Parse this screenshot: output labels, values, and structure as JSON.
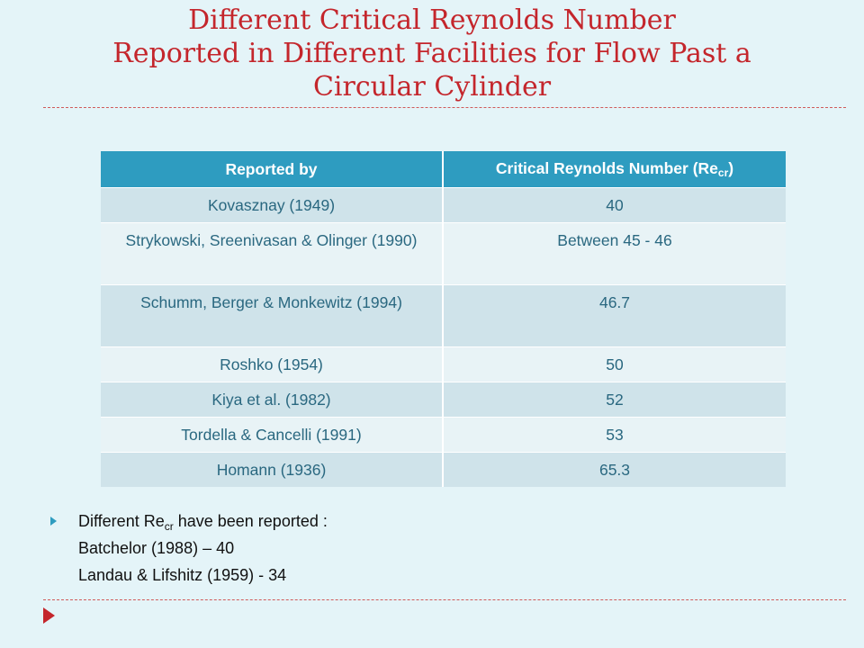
{
  "slide": {
    "title_lines": [
      "Different Critical Reynolds Number",
      "Reported in Different Facilities for Flow Past a",
      "Circular Cylinder"
    ]
  },
  "table": {
    "header": {
      "col1": "Reported by",
      "col2_prefix": "Critical Reynolds Number (Re",
      "col2_sub": "cr",
      "col2_suffix": ")"
    },
    "rows": [
      {
        "reported_by": "Kovasznay (1949)",
        "re_cr": "40"
      },
      {
        "reported_by": "Strykowski, Sreenivasan & Olinger (1990)",
        "re_cr": "Between 45 - 46"
      },
      {
        "reported_by": "Schumm, Berger & Monkewitz (1994)",
        "re_cr": "46.7"
      },
      {
        "reported_by": "Roshko (1954)",
        "re_cr": "50"
      },
      {
        "reported_by": "Kiya et al. (1982)",
        "re_cr": "52"
      },
      {
        "reported_by": "Tordella & Cancelli (1991)",
        "re_cr": "53"
      },
      {
        "reported_by": "Homann (1936)",
        "re_cr": "65.3"
      }
    ]
  },
  "bullets": {
    "item1_prefix": "Different Re",
    "item1_sub": "cr",
    "item1_suffix": " have been reported :",
    "line2": "Batchelor (1988) – 40",
    "line3": "Landau & Lifshitz (1959) - 34"
  },
  "colors": {
    "title": "#c4262c",
    "header_bg": "#2e9cc0",
    "row_odd": "#cfe3ea",
    "row_even": "#e8f3f6",
    "cell_text": "#2a6880",
    "background": "#e4f4f8"
  }
}
